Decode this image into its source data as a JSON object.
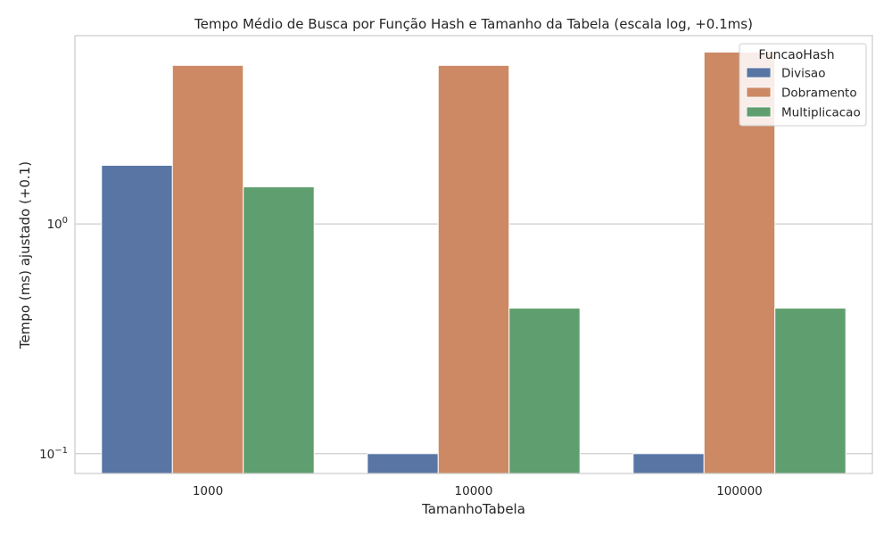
{
  "chart_data": {
    "type": "bar",
    "title": "Tempo Médio de Busca por Função Hash e Tamanho da Tabela (escala log, +0.1ms)",
    "xlabel": "TamanhoTabela",
    "ylabel": "Tempo (ms) ajustado (+0.1)",
    "yscale": "log",
    "ylim": [
      0.082,
      6.6
    ],
    "yticks": [
      {
        "value": 0.1,
        "base": "10",
        "exp": "−1"
      },
      {
        "value": 1,
        "base": "10",
        "exp": "0"
      }
    ],
    "categories": [
      "1000",
      "10000",
      "100000"
    ],
    "legend": {
      "title": "FuncaoHash",
      "position": "top-right"
    },
    "grid": "horizontal",
    "series": [
      {
        "name": "Divisao",
        "color": "#5875a4",
        "values": [
          1.8,
          0.1,
          0.1
        ]
      },
      {
        "name": "Dobramento",
        "color": "#cc8963",
        "values": [
          4.9,
          4.9,
          5.6
        ]
      },
      {
        "name": "Multiplicacao",
        "color": "#5f9e6e",
        "values": [
          1.45,
          0.43,
          0.43
        ]
      }
    ]
  }
}
